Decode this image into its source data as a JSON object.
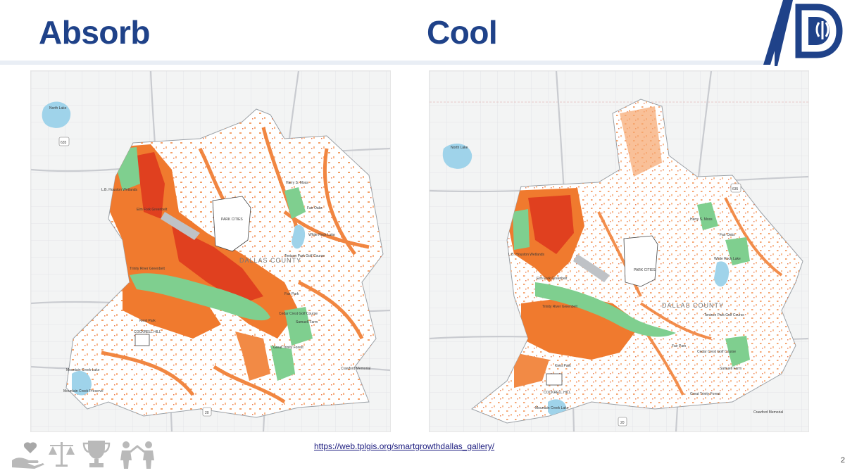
{
  "slide": {
    "title_left": "Absorb",
    "title_right": "Cool",
    "link_text": "https://web.tplgis.org/smartgrowthdallas_gallery/",
    "page_number": "2",
    "colors": {
      "title": "#1f4289",
      "accent_blue": "#1f4289",
      "banner_light": "#e9eef5",
      "map_background": "#f3f4f4",
      "city_area": "#ffffff",
      "priority_high": "#e0401f",
      "priority_medium": "#f07a2e",
      "priority_low": "#f7b07a",
      "parkland": "#7fcf8f",
      "water": "#9fd3ea",
      "road": "#c9cbd0"
    },
    "footer_icons": [
      "hand-care-icon",
      "scales-icon",
      "trophy-icon",
      "people-icon"
    ],
    "logo": "dallas-logo"
  },
  "maps": [
    {
      "id": "absorb",
      "labels": {
        "park_cities": "PARK CITIES",
        "county": "DALLAS COUNTY",
        "harry_moss": "Harry S. Moss",
        "fair_oaks": "Fair Oaks",
        "white_rock": "White Rock Lake",
        "elm_fork": "Elm Fork Greenbelt",
        "trinity": "Trinity River Greenbelt",
        "lb_houston": "L.B. Houston Wetlands",
        "tenison": "Tenison Park Golf Course",
        "fair_park": "Fair Park",
        "cedar_crest": "Cedar Crest Golf Course",
        "kiest": "Kiest Park",
        "cockrell": "COCKRELL HILL",
        "joe_pool": "Mountain Creek Lake",
        "grauwyler": "Samuell Farm",
        "great_trinity": "Great Trinity Forest",
        "crawford": "Crawford Memorial",
        "mountain": "Mountain Creek Preserve",
        "north_lake": "North Lake",
        "i635": "635",
        "i20": "20"
      }
    },
    {
      "id": "cool",
      "labels": {
        "park_cities": "PARK CITIES",
        "county": "DALLAS COUNTY",
        "harry_moss": "Harry S. Moss",
        "fair_oaks": "Fair Oaks",
        "white_rock": "White Rock Lake",
        "elm_fork": "Elm Fork Greenbelt",
        "trinity": "Trinity River Greenbelt",
        "lb_houston": "L.B. Houston Wetlands",
        "tenison": "Tenison Park Golf Course",
        "fair_park": "Fair Park",
        "cedar_crest": "Cedar Crest Golf Course",
        "kiest": "Kiest Park",
        "cockrell": "COCKRELL HILL",
        "joe_pool": "Mountain Creek Lake",
        "grauwyler": "Samuell Farm",
        "great_trinity": "Great Trinity Forest",
        "crawford": "Crawford Memorial",
        "north_lake": "North Lake",
        "i635": "635",
        "i20": "20"
      }
    }
  ]
}
